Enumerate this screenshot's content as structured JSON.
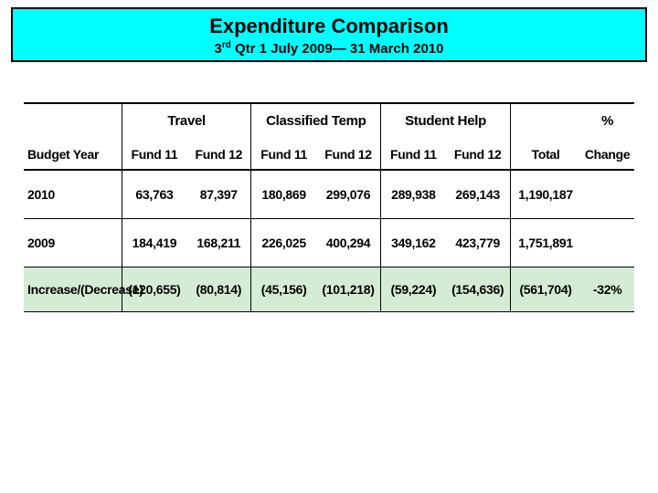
{
  "header": {
    "title": "Expenditure Comparison",
    "subtitle_ord": "rd",
    "subtitle_pre": "3",
    "subtitle_rest": " Qtr 1 July 2009— 31 March 2010"
  },
  "table": {
    "group_headers": [
      "Travel",
      "Classified Temp",
      "Student Help"
    ],
    "budget_year_label": "Budget Year",
    "fund_labels": {
      "f11": "Fund 11",
      "f12": "Fund 12"
    },
    "total_label": "Total",
    "pct_label_top": "%",
    "pct_label_bot": "Change",
    "rows": [
      {
        "label": "2010",
        "vals": [
          "63,763",
          "87,397",
          "180,869",
          "299,076",
          "289,938",
          "269,143"
        ],
        "total": "1,190,187",
        "pct": ""
      },
      {
        "label": "2009",
        "vals": [
          "184,419",
          "168,211",
          "226,025",
          "400,294",
          "349,162",
          "423,779"
        ],
        "total": "1,751,891",
        "pct": ""
      },
      {
        "label": "Increase/(Decrease)",
        "vals": [
          "(120,655)",
          "(80,814)",
          "(45,156)",
          "(101,218)",
          "(59,224)",
          "(154,636)"
        ],
        "total": "(561,704)",
        "pct": "-32%"
      }
    ]
  },
  "colors": {
    "header_bg": "#00ffff",
    "diff_row_bg": "#d4ecd4",
    "border": "#000000",
    "text": "#000000",
    "page_bg": "#ffffff"
  }
}
